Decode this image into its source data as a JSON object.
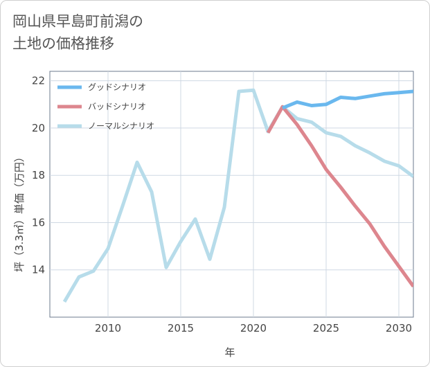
{
  "title": {
    "line1": "岡山県早島町前潟の",
    "line2": "土地の価格推移"
  },
  "chart_data": {
    "type": "line",
    "title": "岡山県早島町前潟の土地の価格推移",
    "xlabel": "年",
    "ylabel": "坪（3.3㎡）単価（万円）",
    "xlim": [
      2006,
      2031
    ],
    "ylim": [
      12,
      22.4
    ],
    "xticks": [
      2010,
      2015,
      2020,
      2025,
      2030
    ],
    "yticks": [
      14,
      16,
      18,
      20,
      22
    ],
    "grid": true,
    "legend_position": "top-left",
    "series": [
      {
        "name": "グッドシナリオ",
        "color": "#6ab8ee",
        "x": [
          2022,
          2023,
          2024,
          2025,
          2026,
          2027,
          2028,
          2029,
          2030,
          2031
        ],
        "y": [
          20.85,
          21.1,
          20.95,
          21.0,
          21.3,
          21.25,
          21.35,
          21.45,
          21.5,
          21.55
        ]
      },
      {
        "name": "バッドシナリオ",
        "color": "#dd868e",
        "x": [
          2021,
          2022,
          2023,
          2024,
          2025,
          2026,
          2027,
          2028,
          2029,
          2030,
          2031
        ],
        "y": [
          19.8,
          20.9,
          20.15,
          19.25,
          18.25,
          17.5,
          16.7,
          15.95,
          15.0,
          14.15,
          13.3
        ]
      },
      {
        "name": "ノーマルシナリオ",
        "color": "#b7dcea",
        "x": [
          2007,
          2008,
          2009,
          2010,
          2011,
          2012,
          2013,
          2014,
          2015,
          2016,
          2017,
          2018,
          2019,
          2020,
          2021,
          2022,
          2023,
          2024,
          2025,
          2026,
          2027,
          2028,
          2029,
          2030,
          2031
        ],
        "y": [
          12.65,
          13.7,
          13.95,
          14.9,
          16.7,
          18.55,
          17.3,
          14.1,
          15.2,
          16.15,
          14.45,
          16.65,
          21.55,
          21.6,
          19.85,
          20.9,
          20.4,
          20.25,
          19.8,
          19.65,
          19.25,
          18.95,
          18.6,
          18.4,
          17.95
        ]
      }
    ]
  }
}
